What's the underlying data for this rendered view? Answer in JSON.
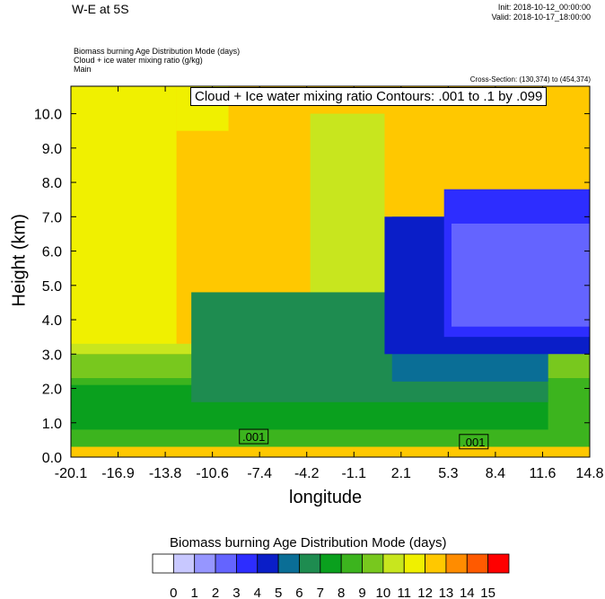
{
  "header": {
    "title": "W-E at 5S",
    "init": "Init: 2018-10-12_00:00:00",
    "valid": "Valid: 2018-10-17_18:00:00",
    "field_lines": [
      "Biomass burning Age Distribution Mode   (days)",
      "Cloud + ice water mixing ratio   (g/kg)",
      "Main"
    ],
    "cross_section": "Cross-Section: (130,374) to (454,374)",
    "contour_note": "Cloud + Ice water mixing ratio Contours: .001 to .1 by .099"
  },
  "chart_data": {
    "type": "heatmap",
    "xlabel": "longitude",
    "ylabel": "Height (km)",
    "xlim": [
      -20.1,
      14.8
    ],
    "ylim": [
      0.0,
      10.8
    ],
    "x_ticks": [
      "-20.1",
      "-16.9",
      "-13.8",
      "-10.6",
      "-7.4",
      "-4.2",
      "-1.1",
      "2.1",
      "5.3",
      "8.4",
      "11.6",
      "14.8"
    ],
    "y_ticks": [
      "0.0",
      "1.0",
      "2.0",
      "3.0",
      "4.0",
      "5.0",
      "6.0",
      "7.0",
      "8.0",
      "9.0",
      "10.0"
    ],
    "contour_labels": [
      {
        "text": ".001",
        "lon": -7.8,
        "height": 0.6
      },
      {
        "text": ".001",
        "lon": 7.0,
        "height": 0.45
      }
    ],
    "colorbar": {
      "title": "Biomass burning Age Distribution Mode  (days)",
      "tick_labels": [
        "0",
        "1",
        "2",
        "3",
        "4",
        "5",
        "6",
        "7",
        "8",
        "9",
        "10",
        "11",
        "12",
        "13",
        "14",
        "15"
      ],
      "colors": [
        "#ffffff",
        "#c8c8ff",
        "#9696ff",
        "#6464ff",
        "#2d2dff",
        "#0a1ec8",
        "#0a6e96",
        "#1e8c50",
        "#0aa01e",
        "#3cb41e",
        "#78c81e",
        "#c8e61e",
        "#f0f000",
        "#ffc800",
        "#ff8c00",
        "#ff5a00",
        "#ff0000"
      ]
    },
    "regions": [
      {
        "value": 13,
        "lon": [
          -20.1,
          14.8
        ],
        "height": [
          0.0,
          10.8
        ],
        "color": "#ffc800"
      },
      {
        "value": 12,
        "lon": [
          -20.1,
          -13.0
        ],
        "height": [
          3.2,
          10.8
        ],
        "color": "#f0f000"
      },
      {
        "value": 12,
        "lon": [
          -13.0,
          -9.5
        ],
        "height": [
          9.5,
          10.8
        ],
        "color": "#f0f000"
      },
      {
        "value": 11,
        "lon": [
          -4.0,
          1.0
        ],
        "height": [
          4.5,
          10.0
        ],
        "color": "#c8e61e"
      },
      {
        "value": 11,
        "lon": [
          -20.1,
          14.8
        ],
        "height": [
          3.0,
          3.3
        ],
        "color": "#c8e61e"
      },
      {
        "value": 10,
        "lon": [
          -20.1,
          14.8
        ],
        "height": [
          1.2,
          3.0
        ],
        "color": "#78c81e"
      },
      {
        "value": 9,
        "lon": [
          -20.1,
          14.8
        ],
        "height": [
          0.3,
          2.3
        ],
        "color": "#3cb41e"
      },
      {
        "value": 8,
        "lon": [
          -20.1,
          12.0
        ],
        "height": [
          0.8,
          2.1
        ],
        "color": "#0aa01e"
      },
      {
        "value": 7,
        "lon": [
          -12.0,
          12.0
        ],
        "height": [
          1.6,
          4.8
        ],
        "color": "#1e8c50"
      },
      {
        "value": 6,
        "lon": [
          1.5,
          12.0
        ],
        "height": [
          2.2,
          7.0
        ],
        "color": "#0a6e96"
      },
      {
        "value": 5,
        "lon": [
          1.0,
          14.8
        ],
        "height": [
          3.0,
          7.0
        ],
        "color": "#0a1ec8"
      },
      {
        "value": 4,
        "lon": [
          5.0,
          14.8
        ],
        "height": [
          3.5,
          7.8
        ],
        "color": "#2d2dff"
      },
      {
        "value": 3,
        "lon": [
          5.5,
          14.8
        ],
        "height": [
          3.8,
          6.8
        ],
        "color": "#6464ff"
      }
    ]
  }
}
